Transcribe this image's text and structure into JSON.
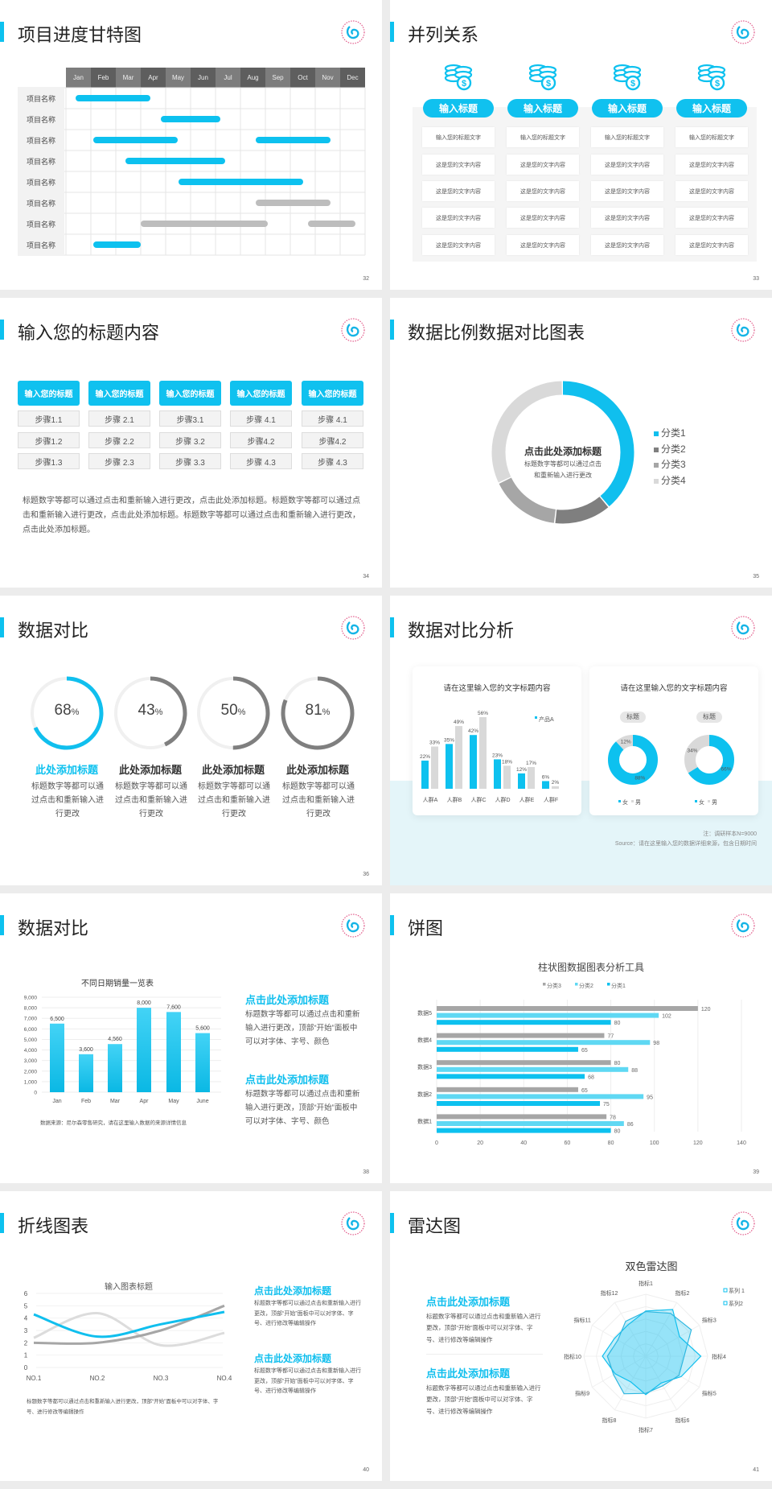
{
  "colors": {
    "accent": "#0dc1ef",
    "accent_light": "#5fd8f3",
    "dark_gray": "#7f7f7f",
    "mid_gray": "#a6a6a6",
    "light_gray": "#d9d9d9",
    "bar_gray": "#bdbdbd"
  },
  "slides": {
    "s32": {
      "title": "项目进度甘特图",
      "page": "32",
      "months": [
        "Jan",
        "Feb",
        "Mar",
        "Apr",
        "May",
        "Jun",
        "Jul",
        "Aug",
        "Sep",
        "Oct",
        "Nov",
        "Dec"
      ],
      "rows": [
        {
          "label": "项目名称",
          "bars": [
            {
              "start": 0.4,
              "end": 3.4,
              "color": "cyan"
            }
          ]
        },
        {
          "label": "项目名称",
          "bars": [
            {
              "start": 3.8,
              "end": 6.2,
              "color": "cyan"
            }
          ]
        },
        {
          "label": "项目名称",
          "bars": [
            {
              "start": 1.1,
              "end": 4.5,
              "color": "cyan"
            },
            {
              "start": 7.6,
              "end": 10.6,
              "color": "cyan"
            }
          ]
        },
        {
          "label": "项目名称",
          "bars": [
            {
              "start": 2.4,
              "end": 6.4,
              "color": "cyan"
            }
          ]
        },
        {
          "label": "项目名称",
          "bars": [
            {
              "start": 4.5,
              "end": 9.5,
              "color": "cyan"
            }
          ]
        },
        {
          "label": "项目名称",
          "bars": [
            {
              "start": 7.6,
              "end": 10.6,
              "color": "gray"
            }
          ]
        },
        {
          "label": "项目名称",
          "bars": [
            {
              "start": 3.0,
              "end": 8.1,
              "color": "gray"
            },
            {
              "start": 9.7,
              "end": 11.6,
              "color": "gray"
            }
          ]
        },
        {
          "label": "项目名称",
          "bars": [
            {
              "start": 1.1,
              "end": 3.0,
              "color": "cyan"
            }
          ]
        }
      ]
    },
    "s33": {
      "title": "并列关系",
      "page": "33",
      "icon": "coins-dollar-icon",
      "columns": [
        {
          "heading": "输入标题",
          "cells": [
            "输入您的标题文字",
            "这是您的文字内容",
            "这是您的文字内容",
            "这是您的文字内容",
            "这是您的文字内容"
          ]
        },
        {
          "heading": "输入标题",
          "cells": [
            "输入您的标题文字",
            "这是您的文字内容",
            "这是您的文字内容",
            "这是您的文字内容",
            "这是您的文字内容"
          ]
        },
        {
          "heading": "输入标题",
          "cells": [
            "输入您的标题文字",
            "这是您的文字内容",
            "这是您的文字内容",
            "这是您的文字内容",
            "这是您的文字内容"
          ]
        },
        {
          "heading": "输入标题",
          "cells": [
            "输入您的标题文字",
            "这是您的文字内容",
            "这是您的文字内容",
            "这是您的文字内容",
            "这是您的文字内容"
          ]
        }
      ]
    },
    "s34": {
      "title": "输入您的标题内容",
      "page": "34",
      "columns": [
        {
          "heading": "输入您的标题",
          "steps": [
            "步骤1.1",
            "步骤1.2",
            "步骤1.3"
          ]
        },
        {
          "heading": "输入您的标题",
          "steps": [
            "步骤 2.1",
            "步骤 2.2",
            "步骤 2.3"
          ]
        },
        {
          "heading": "输入您的标题",
          "steps": [
            "步骤3.1",
            "步骤 3.2",
            "步骤 3.3"
          ]
        },
        {
          "heading": "输入您的标题",
          "steps": [
            "步骤 4.1",
            "步骤4.2",
            "步骤 4.3"
          ]
        },
        {
          "heading": "输入您的标题",
          "steps": [
            "步骤 4.1",
            "步骤4.2",
            "步骤 4.3"
          ]
        }
      ],
      "paragraph": "标题数字等都可以通过点击和重新输入进行更改，点击此处添加标题。标题数字等都可以通过点击和重新输入进行更改，点击此处添加标题。标题数字等都可以通过点击和重新输入进行更改，点击此处添加标题。"
    },
    "s35": {
      "title": "数据比例数据对比图表",
      "page": "35",
      "center_title": "点击此处添加标题",
      "center_text": "标题数字等都可以通过点击和重新输入进行更改"
    },
    "s36": {
      "title": "数据对比",
      "page": "36",
      "percent_sign": "%",
      "items": [
        {
          "value": 68,
          "heading": "此处添加标题",
          "text": "标题数字等都可以通过点击和重新输入进行更改",
          "color": "#10bfee"
        },
        {
          "value": 43,
          "heading": "此处添加标题",
          "text": "标题数字等都可以通过点击和重新输入进行更改",
          "color": "#7f7f7f"
        },
        {
          "value": 50,
          "heading": "此处添加标题",
          "text": "标题数字等都可以通过点击和重新输入进行更改",
          "color": "#7f7f7f"
        },
        {
          "value": 81,
          "heading": "此处添加标题",
          "text": "标题数字等都可以通过点击和重新输入进行更改",
          "color": "#7f7f7f"
        }
      ]
    },
    "s37": {
      "title": "数据对比分析",
      "page": "37",
      "card1_title": "请在这里输入您的文字标题内容",
      "card2_title": "请在这里输入您的文字标题内容",
      "note": "注：调研样本N=9000",
      "source": "Source：请在这里输入您的数据详细来源，包含日期时间"
    },
    "s38": {
      "title": "数据对比",
      "page": "38",
      "source": "数据来源：尼尔森零售研究，请在这里输入数据的来源详情信息",
      "blocks": [
        {
          "heading": "点击此处添加标题",
          "text": "标题数字等都可以通过点击和重新输入进行更改，顶部“开始”面板中可以对字体、字号、颜色"
        },
        {
          "heading": "点击此处添加标题",
          "text": "标题数字等都可以通过点击和重新输入进行更改，顶部“开始”面板中可以对字体、字号、颜色"
        }
      ]
    },
    "s39": {
      "title": "饼图",
      "page": "39"
    },
    "s40": {
      "title": "折线图表",
      "page": "40",
      "caption": "标题数字等都可以通过点击和重新输入进行更改，顶部“开始”面板中可以对字体、字号、进行修改等编辑操作",
      "blocks": [
        {
          "heading": "点击此处添加标题",
          "text": "标题数字等都可以通过点击和重新输入进行更改，顶部“开始”面板中可以对字体、字号、进行修改等编辑操作"
        },
        {
          "heading": "点击此处添加标题",
          "text": "标题数字等都可以通过点击和重新输入进行更改，顶部“开始”面板中可以对字体、字号、进行修改等编辑操作"
        }
      ]
    },
    "s41": {
      "title": "雷达图",
      "page": "41",
      "blocks": [
        {
          "heading": "点击此处添加标题",
          "text": "标题数字等都可以通过点击和重新输入进行更改，顶部“开始”面板中可以对字体、字号、进行修改等编辑操作"
        },
        {
          "heading": "点击此处添加标题",
          "text": "标题数字等都可以通过点击和重新输入进行更改，顶部“开始”面板中可以对字体、字号、进行修改等编辑操作"
        }
      ]
    }
  },
  "chart_data": [
    {
      "type": "pie",
      "style": "donut",
      "categories": [
        "分类1",
        "分类2",
        "分类3",
        "分类4"
      ],
      "values": [
        39,
        13,
        16,
        32
      ],
      "colors": [
        "#10bfee",
        "#7f7f7f",
        "#a6a6a6",
        "#d9d9d9"
      ],
      "legend": "right"
    },
    {
      "type": "bar",
      "categories": [
        "人群A",
        "人群B",
        "人群C",
        "人群D",
        "人群E",
        "人群F"
      ],
      "series": [
        {
          "name": "产品A",
          "values": [
            22,
            35,
            42,
            23,
            12,
            6
          ],
          "labels": [
            "22%",
            "35%",
            "42%",
            "23%",
            "12%",
            "6%"
          ]
        },
        {
          "values": [
            33,
            49,
            56,
            18,
            17,
            2
          ],
          "labels": [
            "33%",
            "49%",
            "56%",
            "18%",
            "17%",
            "2%"
          ]
        }
      ],
      "legend": "top-right"
    },
    {
      "type": "pie",
      "style": "donut",
      "label": "标题",
      "categories": [
        "女",
        "男"
      ],
      "values": [
        88,
        12
      ],
      "labels": [
        "88%",
        "12%"
      ],
      "legend": "bottom"
    },
    {
      "type": "pie",
      "style": "donut",
      "label": "标题",
      "categories": [
        "女",
        "男"
      ],
      "values": [
        66,
        34
      ],
      "labels": [
        "66%",
        "34%"
      ],
      "legend": "bottom"
    },
    {
      "type": "bar",
      "title": "不同日期销量一览表",
      "categories": [
        "Jan",
        "Feb",
        "Mar",
        "Apr",
        "May",
        "June"
      ],
      "values": [
        6500,
        3600,
        4560,
        8000,
        7600,
        5600
      ],
      "labels": [
        "6,500",
        "3,600",
        "4,560",
        "8,000",
        "7,600",
        "5,600"
      ],
      "ylim": [
        0,
        9000
      ],
      "yticks": [
        "0",
        "1,000",
        "2,000",
        "3,000",
        "4,000",
        "5,000",
        "6,000",
        "7,000",
        "8,000",
        "9,000"
      ],
      "grid": true
    },
    {
      "type": "bar",
      "orientation": "horizontal",
      "title": "柱状图数据图表分析工具",
      "categories": [
        "数据1",
        "数据2",
        "数据3",
        "数据4",
        "数据5"
      ],
      "series": [
        {
          "name": "分类1",
          "values": [
            80,
            75,
            68,
            65,
            80
          ]
        },
        {
          "name": "分类2",
          "values": [
            86,
            95,
            88,
            98,
            102
          ]
        },
        {
          "name": "分类3",
          "values": [
            78,
            65,
            80,
            77,
            120
          ]
        }
      ],
      "xlim": [
        0,
        140
      ],
      "xticks": [
        0,
        20,
        40,
        60,
        80,
        100,
        120,
        140
      ],
      "legend": "top",
      "grid": true
    },
    {
      "type": "line",
      "title": "输入图表标题",
      "categories": [
        "NO.1",
        "NO.2",
        "NO.3",
        "NO.4"
      ],
      "series": [
        {
          "values": [
            4.3,
            2.5,
            3.5,
            4.5
          ],
          "color": "#10bfee"
        },
        {
          "values": [
            2.4,
            4.4,
            1.8,
            2.8
          ],
          "color": "#dcdcdc"
        },
        {
          "values": [
            2,
            2,
            3,
            5
          ],
          "color": "#a6a6a6"
        }
      ],
      "ylim": [
        0,
        6
      ],
      "yticks": [
        0,
        1,
        2,
        3,
        4,
        5,
        6
      ],
      "smooth": true,
      "grid": true
    },
    {
      "type": "radar",
      "title": "双色雷达图",
      "categories": [
        "指标1",
        "指标2",
        "指标3",
        "指标4",
        "指标5",
        "指标6",
        "指标7",
        "指标8",
        "指标9",
        "指标10",
        "指标11",
        "指标12"
      ],
      "series": [
        {
          "name": "系列 1",
          "values": [
            73,
            87,
            63,
            89,
            66,
            50,
            62,
            48,
            57,
            70,
            58,
            58
          ]
        },
        {
          "name": "系列2",
          "values": [
            72,
            80,
            85,
            62,
            62,
            55,
            60,
            70,
            60,
            62,
            52,
            65
          ]
        }
      ],
      "rmax": 100,
      "legend": "top-right"
    }
  ]
}
